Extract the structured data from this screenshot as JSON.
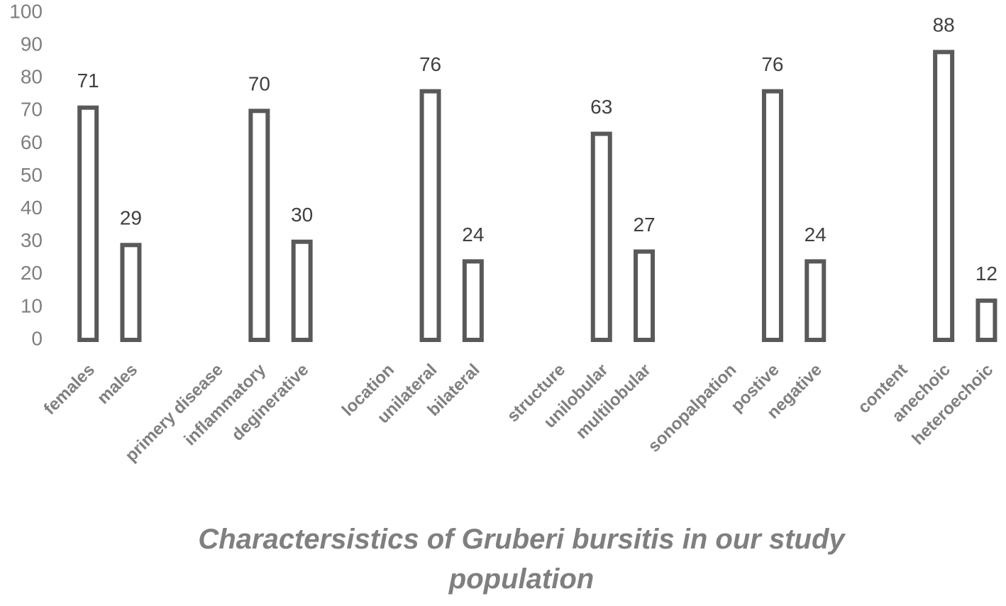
{
  "chart_data": {
    "type": "bar",
    "title": "Charactersistics of Gruberi bursitis in our study population",
    "categories": [
      "females",
      "males",
      null,
      "primery disease",
      "inflammatory",
      "deginerative",
      null,
      "location",
      "unilateral",
      "bilateral",
      null,
      "structure",
      "unilobular",
      "multilobular",
      null,
      "sonopalpation",
      "postive",
      "negative",
      null,
      "content",
      "anechoic",
      "heteroechoic"
    ],
    "values": [
      71,
      29,
      null,
      null,
      70,
      30,
      null,
      null,
      76,
      24,
      null,
      null,
      63,
      27,
      null,
      null,
      76,
      24,
      null,
      null,
      88,
      12
    ],
    "color": "#595959",
    "ylim": [
      0,
      100
    ],
    "yticks": [
      0,
      10,
      20,
      30,
      40,
      50,
      60,
      70,
      80,
      90,
      100
    ],
    "grid": false
  }
}
